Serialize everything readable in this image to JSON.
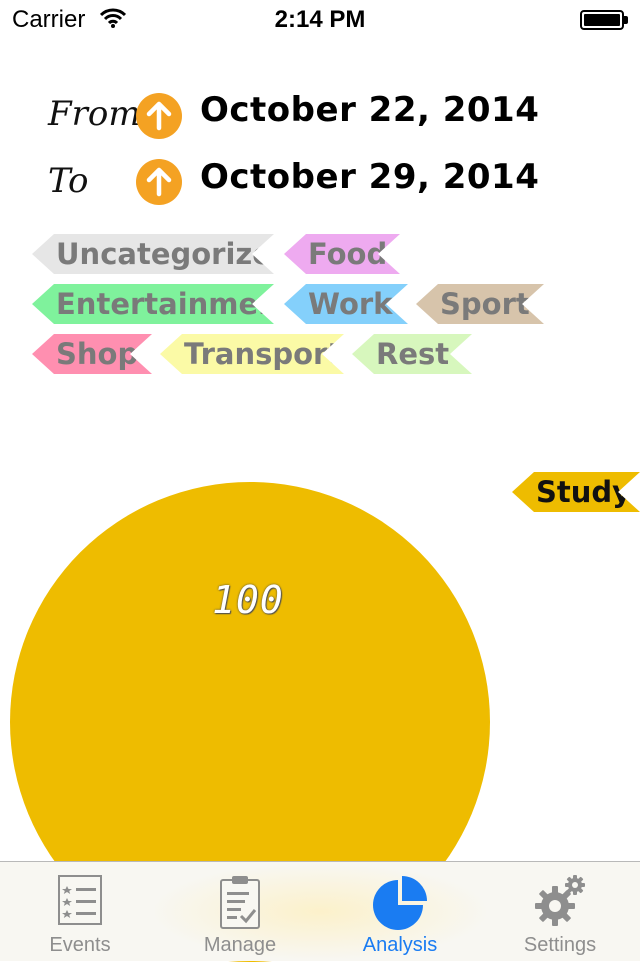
{
  "status_bar": {
    "carrier": "Carrier",
    "time": "2:14 PM"
  },
  "date_range": {
    "from_label": "From",
    "from_value": "October 22, 2014",
    "to_label": "To",
    "to_value": "October 29, 2014"
  },
  "tags": [
    {
      "label": "Uncategorized",
      "color": "#e6e6e6"
    },
    {
      "label": "Food",
      "color": "#eeaaf0"
    },
    {
      "label": "Entertainment",
      "color": "#7ff29c"
    },
    {
      "label": "Work",
      "color": "#84d0fb"
    },
    {
      "label": "Sport",
      "color": "#d7c4ab"
    },
    {
      "label": "Shop",
      "color": "#ff8fb0"
    },
    {
      "label": "Transport",
      "color": "#fbfaa6"
    },
    {
      "label": "Rest",
      "color": "#d7f7bd"
    }
  ],
  "legend": {
    "label": "Study",
    "color": "#eebc00"
  },
  "chart_data": {
    "type": "pie",
    "categories": [
      "Study"
    ],
    "values": [
      100
    ],
    "colors": [
      "#eebc00"
    ]
  },
  "tab_bar": {
    "tabs": [
      {
        "label": "Events",
        "icon": "list-icon",
        "active": false
      },
      {
        "label": "Manage",
        "icon": "clipboard-icon",
        "active": false
      },
      {
        "label": "Analysis",
        "icon": "pie-chart-icon",
        "active": true
      },
      {
        "label": "Settings",
        "icon": "gear-icon",
        "active": false
      }
    ],
    "active_color": "#1a7cf2",
    "inactive_color": "#8e8e8e"
  }
}
